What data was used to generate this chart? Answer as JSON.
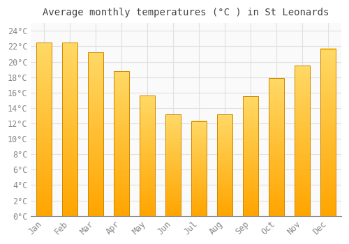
{
  "months": [
    "Jan",
    "Feb",
    "Mar",
    "Apr",
    "May",
    "Jun",
    "Jul",
    "Aug",
    "Sep",
    "Oct",
    "Nov",
    "Dec"
  ],
  "values": [
    22.5,
    22.5,
    21.2,
    18.8,
    15.6,
    13.2,
    12.3,
    13.2,
    15.5,
    17.9,
    19.5,
    21.7
  ],
  "bar_color_top": "#FFD966",
  "bar_color_bottom": "#FFA500",
  "bar_edge_color": "#CC8800",
  "title": "Average monthly temperatures (°C ) in St Leonards",
  "ylim": [
    0,
    25
  ],
  "ytick_step": 2,
  "background_color": "#FFFFFF",
  "plot_bg_color": "#FAFAFA",
  "grid_color": "#E0E0E0",
  "title_fontsize": 10,
  "tick_fontsize": 8.5,
  "tick_label_color": "#888888",
  "bar_width": 0.6
}
